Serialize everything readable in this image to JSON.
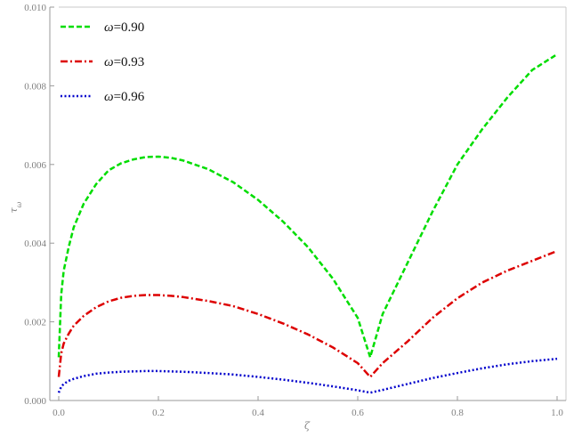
{
  "chart_data": {
    "type": "line",
    "title": "",
    "xlabel": "ζ",
    "ylabel": "τ_ω",
    "xlim": [
      0.0,
      1.0
    ],
    "ylim": [
      0.0,
      0.01
    ],
    "x_ticks": [
      "0.0",
      "0.2",
      "0.4",
      "0.6",
      "0.8",
      "1.0"
    ],
    "y_ticks": [
      "0.000",
      "0.002",
      "0.004",
      "0.006",
      "0.008",
      "0.010"
    ],
    "grid": false,
    "legend_position": "top-left",
    "series": [
      {
        "name": "ω=0.90",
        "color": "#00dd00",
        "dash": "dashed",
        "x": [
          0.0,
          0.005,
          0.01,
          0.02,
          0.03,
          0.05,
          0.075,
          0.1,
          0.125,
          0.15,
          0.175,
          0.2,
          0.225,
          0.25,
          0.3,
          0.35,
          0.4,
          0.45,
          0.5,
          0.55,
          0.6,
          0.625,
          0.65,
          0.7,
          0.75,
          0.8,
          0.85,
          0.9,
          0.95,
          1.0
        ],
        "y": [
          0.0011,
          0.0027,
          0.0033,
          0.0039,
          0.0044,
          0.005,
          0.0055,
          0.00585,
          0.00603,
          0.00613,
          0.00619,
          0.0062,
          0.00617,
          0.0061,
          0.00588,
          0.00555,
          0.0051,
          0.00455,
          0.0039,
          0.0031,
          0.0021,
          0.0011,
          0.0022,
          0.0035,
          0.0048,
          0.006,
          0.0069,
          0.0077,
          0.0084,
          0.0088
        ]
      },
      {
        "name": "ω=0.93",
        "color": "#dd0000",
        "dash": "dashdot",
        "x": [
          0.0,
          0.005,
          0.01,
          0.02,
          0.03,
          0.05,
          0.075,
          0.1,
          0.125,
          0.15,
          0.175,
          0.2,
          0.225,
          0.25,
          0.3,
          0.35,
          0.4,
          0.45,
          0.5,
          0.55,
          0.6,
          0.625,
          0.65,
          0.7,
          0.75,
          0.8,
          0.85,
          0.9,
          0.95,
          1.0
        ],
        "y": [
          0.0006,
          0.0012,
          0.00145,
          0.0017,
          0.0019,
          0.00215,
          0.00237,
          0.00252,
          0.00261,
          0.00266,
          0.00268,
          0.00268,
          0.00266,
          0.00263,
          0.00253,
          0.0024,
          0.0022,
          0.00196,
          0.00168,
          0.00135,
          0.00095,
          0.0006,
          0.00095,
          0.0015,
          0.0021,
          0.0026,
          0.003,
          0.0033,
          0.00355,
          0.0038
        ]
      },
      {
        "name": "ω=0.96",
        "color": "#0000cc",
        "dash": "dotted",
        "x": [
          0.0,
          0.005,
          0.01,
          0.02,
          0.03,
          0.05,
          0.075,
          0.1,
          0.125,
          0.15,
          0.175,
          0.2,
          0.225,
          0.25,
          0.3,
          0.35,
          0.4,
          0.45,
          0.5,
          0.55,
          0.6,
          0.625,
          0.65,
          0.7,
          0.75,
          0.8,
          0.85,
          0.9,
          0.95,
          1.0
        ],
        "y": [
          0.0002,
          0.00035,
          0.00042,
          0.0005,
          0.00055,
          0.00062,
          0.00068,
          0.00071,
          0.00073,
          0.00074,
          0.00075,
          0.00075,
          0.00074,
          0.00073,
          0.0007,
          0.00066,
          0.0006,
          0.00053,
          0.00045,
          0.00036,
          0.00026,
          0.0002,
          0.00027,
          0.00042,
          0.00057,
          0.0007,
          0.00082,
          0.00092,
          0.001,
          0.00106
        ]
      }
    ]
  }
}
